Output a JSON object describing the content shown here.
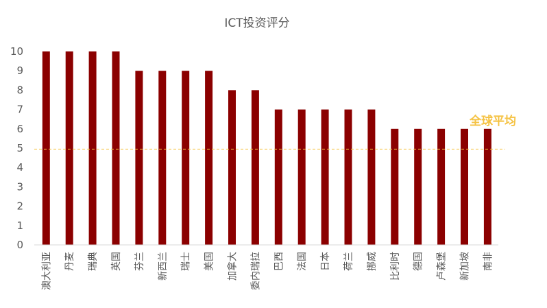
{
  "chart_data": {
    "type": "bar",
    "title": "ICT投资评分",
    "categories": [
      "澳大利亚",
      "丹麦",
      "瑞典",
      "英国",
      "芬兰",
      "新西兰",
      "瑞士",
      "美国",
      "加拿大",
      "委内瑞拉",
      "巴西",
      "法国",
      "日本",
      "荷兰",
      "挪威",
      "比利时",
      "德国",
      "卢森堡",
      "新加坡",
      "南非"
    ],
    "values": [
      10,
      10,
      10,
      10,
      9,
      9,
      9,
      9,
      8,
      8,
      7,
      7,
      7,
      7,
      7,
      6,
      6,
      6,
      6,
      6
    ],
    "ylim": [
      0,
      10
    ],
    "yticks": [
      "0",
      "1",
      "2",
      "3",
      "4",
      "5",
      "6",
      "7",
      "8",
      "9",
      "10"
    ],
    "grid": false,
    "bar_color": "#8B0000",
    "reference_line": {
      "label": "全球平均",
      "value": 4.95,
      "color": "#F5C242",
      "style": "dashed"
    }
  }
}
